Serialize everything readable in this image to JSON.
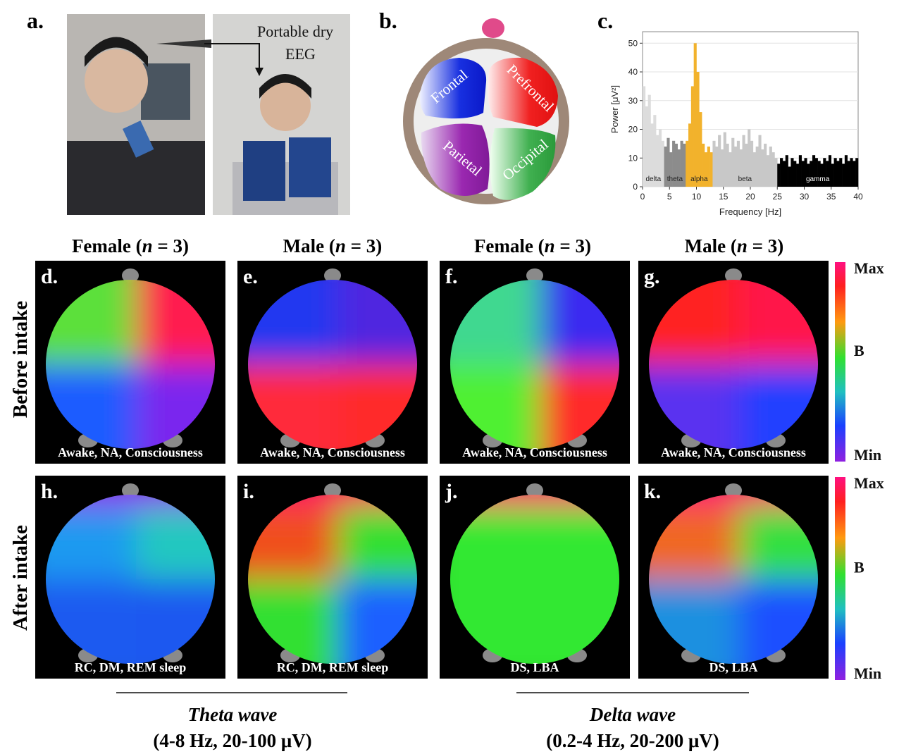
{
  "panel_labels": [
    "a.",
    "b.",
    "c."
  ],
  "photo_annotation": [
    "Portable dry",
    "EEG"
  ],
  "brain_regions": [
    "Frontal",
    "Prefrontal",
    "Parietal",
    "Occipital"
  ],
  "chart_data": {
    "type": "histogram",
    "xlabel": "Frequency [Hz]",
    "ylabel": "Power [μV²]",
    "xlim": [
      0,
      40
    ],
    "ylim": [
      0,
      54
    ],
    "xticks": [
      0,
      5,
      10,
      15,
      20,
      25,
      30,
      35,
      40
    ],
    "yticks": [
      0,
      10,
      20,
      30,
      40,
      50
    ],
    "grid": true,
    "bands": [
      {
        "name": "delta",
        "range": [
          0,
          4
        ],
        "color": "#dcdcdc"
      },
      {
        "name": "theta",
        "range": [
          4,
          8
        ],
        "color": "#8c8c8c"
      },
      {
        "name": "alpha",
        "range": [
          8,
          13
        ],
        "color": "#f2b22c"
      },
      {
        "name": "beta",
        "range": [
          13,
          25
        ],
        "color": "#c8c8c8"
      },
      {
        "name": "gamma",
        "range": [
          25,
          40
        ],
        "color": "#000000"
      }
    ],
    "bins": [
      0,
      0.5,
      1,
      1.5,
      2,
      2.5,
      3,
      3.5,
      4,
      4.5,
      5,
      5.5,
      6,
      6.5,
      7,
      7.5,
      8,
      8.5,
      9,
      9.5,
      10,
      10.5,
      11,
      11.5,
      12,
      12.5,
      13,
      13.5,
      14,
      14.5,
      15,
      15.5,
      16,
      16.5,
      17,
      17.5,
      18,
      18.5,
      19,
      19.5,
      20,
      20.5,
      21,
      21.5,
      22,
      22.5,
      23,
      23.5,
      24,
      24.5,
      25,
      25.5,
      26,
      26.5,
      27,
      27.5,
      28,
      28.5,
      29,
      29.5,
      30,
      30.5,
      31,
      31.5,
      32,
      32.5,
      33,
      33.5,
      34,
      34.5,
      35,
      35.5,
      36,
      36.5,
      37,
      37.5,
      38,
      38.5,
      39,
      39.5,
      40
    ],
    "counts": [
      35,
      28,
      32,
      22,
      25,
      18,
      20,
      16,
      14,
      17,
      12,
      16,
      15,
      13,
      16,
      15,
      16,
      22,
      35,
      50,
      40,
      26,
      15,
      12,
      14,
      12,
      16,
      14,
      18,
      13,
      19,
      15,
      12,
      17,
      14,
      16,
      13,
      18,
      15,
      20,
      16,
      12,
      14,
      18,
      13,
      15,
      11,
      14,
      12,
      10,
      8,
      10,
      9,
      11,
      7,
      10,
      9,
      8,
      11,
      9,
      10,
      8,
      9,
      11,
      10,
      9,
      8,
      10,
      9,
      11,
      8,
      10,
      9,
      10,
      8,
      11,
      9,
      10,
      9,
      10
    ]
  },
  "column_headers": [
    {
      "pre": "Female (",
      "var": "n",
      "post": " = 3)"
    },
    {
      "pre": "Male (",
      "var": "n",
      "post": " = 3)"
    },
    {
      "pre": "Female (",
      "var": "n",
      "post": " = 3)"
    },
    {
      "pre": "Male (",
      "var": "n",
      "post": " = 3)"
    }
  ],
  "row_labels": [
    "Before intake",
    "After intake"
  ],
  "topomaps": [
    {
      "label": "d.",
      "state": "Awake, NA, Consciousness",
      "quadrants": [
        "#5be03a",
        "#ff1a50",
        "#1f5cff",
        "#7a28ee"
      ]
    },
    {
      "label": "e.",
      "state": "Awake, NA, Consciousness",
      "quadrants": [
        "#2038f0",
        "#5026e0",
        "#ff2a3a",
        "#ff2a2a"
      ]
    },
    {
      "label": "f.",
      "state": "Awake, NA, Consciousness",
      "quadrants": [
        "#40d890",
        "#3a2cf0",
        "#50f030",
        "#ff2a2a"
      ]
    },
    {
      "label": "g.",
      "state": "Awake, NA, Consciousness",
      "quadrants": [
        "#ff2020",
        "#ff1448",
        "#5a30f0",
        "#2040ff"
      ]
    },
    {
      "label": "h.",
      "state": "RC, DM, REM sleep",
      "quadrants": [
        "#1a9af0",
        "#20c8c0",
        "#1a5af0",
        "#1a58f0"
      ],
      "rim": "#8a20f0"
    },
    {
      "label": "i.",
      "state": "RC, DM, REM sleep",
      "quadrants": [
        "#f0501a",
        "#30e030",
        "#30e030",
        "#1a60ff"
      ],
      "rim": "#ff1060"
    },
    {
      "label": "j.",
      "state": "DS, LBA",
      "quadrants": [
        "#30e830",
        "#30e830",
        "#30e830",
        "#30e830"
      ],
      "rim": "#ff1070"
    },
    {
      "label": "k.",
      "state": "DS, LBA",
      "quadrants": [
        "#f06820",
        "#30e040",
        "#1a90e0",
        "#1a50ff"
      ],
      "rim": "#ff1070"
    }
  ],
  "colorbar": {
    "labels": [
      "Max",
      "B",
      "Min"
    ]
  },
  "wave_labels": [
    {
      "name": "Theta wave",
      "detail": "(4-8 Hz, 20-100 μV)"
    },
    {
      "name": "Delta wave",
      "detail": "(0.2-4 Hz, 20-200 μV)"
    }
  ]
}
